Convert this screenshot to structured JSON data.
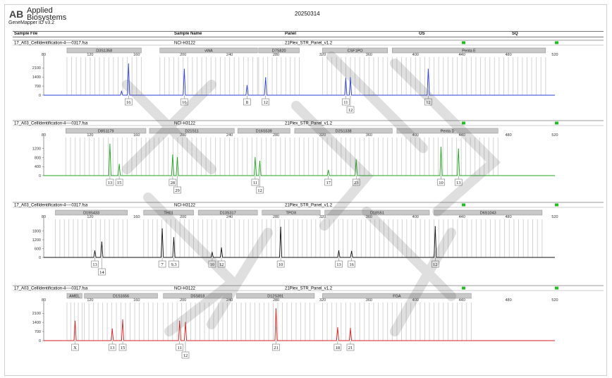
{
  "app": {
    "logo_mark": "AB",
    "logo_line1": "Applied",
    "logo_line2": "Biosystems",
    "version": "GeneMapper ID v3.2",
    "report_date": "20250314"
  },
  "header_columns": {
    "sample_file": "Sample File",
    "sample_name": "Sample Name",
    "panel": "Panel",
    "os": "OS",
    "sq": "SQ"
  },
  "watermark": "",
  "colors": {
    "blue": "#2b3fd6",
    "green": "#1ea51e",
    "black": "#111111",
    "red": "#d62020",
    "quality_ok": "#1ec21e"
  },
  "chart_data": [
    {
      "type": "electropherogram",
      "dye": "blue",
      "sample_file": "17_A03_CellIdentification-4----0317.fsa",
      "sample_name": "NCI-H3122",
      "panel": "21Plex_STR_Panel_v1.2",
      "xlim": [
        80,
        520
      ],
      "x_ticks": [
        80,
        120,
        160,
        200,
        240,
        280,
        320,
        360,
        400,
        440,
        480,
        520
      ],
      "ylim": [
        0,
        2600
      ],
      "y_ticks": [
        0,
        700,
        1400,
        2100
      ],
      "loci": [
        {
          "name": "D3S1358",
          "start": 100,
          "end": 164
        },
        {
          "name": "vWA",
          "start": 180,
          "end": 264
        },
        {
          "name": "D7S820",
          "start": 265,
          "end": 300
        },
        {
          "name": "CSF1PO",
          "start": 320,
          "end": 376
        },
        {
          "name": "Penta E",
          "start": 380,
          "end": 512
        }
      ],
      "peaks": [
        {
          "x": 147,
          "y": 300
        },
        {
          "x": 153,
          "y": 2400
        },
        {
          "x": 201,
          "y": 2000
        },
        {
          "x": 255,
          "y": 750
        },
        {
          "x": 271,
          "y": 1350
        },
        {
          "x": 340,
          "y": 1300
        },
        {
          "x": 344,
          "y": 1350
        },
        {
          "x": 411,
          "y": 2000
        }
      ],
      "allele_calls": [
        {
          "x": 153,
          "label": "16",
          "row": 0
        },
        {
          "x": 201,
          "label": "16",
          "row": 0
        },
        {
          "x": 255,
          "label": "8",
          "row": 0
        },
        {
          "x": 271,
          "label": "12",
          "row": 0
        },
        {
          "x": 340,
          "label": "11",
          "row": 0
        },
        {
          "x": 344,
          "label": "12",
          "row": 1
        },
        {
          "x": 411,
          "label": "12",
          "row": 0
        }
      ]
    },
    {
      "type": "electropherogram",
      "dye": "green",
      "sample_file": "17_A03_CellIdentification-4----0317.fsa",
      "sample_name": "NCI-H3122",
      "panel": "21Plex_STR_Panel_v1.2",
      "xlim": [
        80,
        520
      ],
      "x_ticks": [
        80,
        120,
        160,
        200,
        240,
        280,
        320,
        360,
        400,
        440,
        480,
        520
      ],
      "ylim": [
        0,
        1500
      ],
      "y_ticks": [
        0,
        400,
        800,
        1200
      ],
      "loci": [
        {
          "name": "D8S1179",
          "start": 99,
          "end": 168
        },
        {
          "name": "D21S11",
          "start": 171,
          "end": 244
        },
        {
          "name": "D16S539",
          "start": 247,
          "end": 292
        },
        {
          "name": "D2S1338",
          "start": 296,
          "end": 380
        },
        {
          "name": "Penta D",
          "start": 384,
          "end": 471
        }
      ],
      "peaks": [
        {
          "x": 137,
          "y": 1400
        },
        {
          "x": 145,
          "y": 500
        },
        {
          "x": 191,
          "y": 920
        },
        {
          "x": 195,
          "y": 800
        },
        {
          "x": 262,
          "y": 800
        },
        {
          "x": 266,
          "y": 640
        },
        {
          "x": 325,
          "y": 240
        },
        {
          "x": 349,
          "y": 700
        },
        {
          "x": 422,
          "y": 1260
        },
        {
          "x": 437,
          "y": 1180
        }
      ],
      "allele_calls": [
        {
          "x": 137,
          "label": "13",
          "row": 0
        },
        {
          "x": 145,
          "label": "15",
          "row": 0
        },
        {
          "x": 191,
          "label": "28",
          "row": 0
        },
        {
          "x": 195,
          "label": "29",
          "row": 1
        },
        {
          "x": 262,
          "label": "11",
          "row": 0
        },
        {
          "x": 266,
          "label": "12",
          "row": 1
        },
        {
          "x": 325,
          "label": "17",
          "row": 0
        },
        {
          "x": 349,
          "label": "23",
          "row": 0
        },
        {
          "x": 422,
          "label": "10",
          "row": 0
        },
        {
          "x": 437,
          "label": "13",
          "row": 0
        }
      ]
    },
    {
      "type": "electropherogram",
      "dye": "black",
      "sample_file": "17_A03_CellIdentification-4----0317.fsa",
      "sample_name": "NCI-H3122",
      "panel": "21Plex_STR_Panel_v1.2",
      "xlim": [
        80,
        520
      ],
      "x_ticks": [
        80,
        120,
        160,
        200,
        240,
        280,
        320,
        360,
        400,
        440,
        480,
        520
      ],
      "ylim": [
        0,
        2300
      ],
      "y_ticks": [
        0,
        600,
        1200,
        1800
      ],
      "loci": [
        {
          "name": "D19S433",
          "start": 90,
          "end": 152
        },
        {
          "name": "TH01",
          "start": 166,
          "end": 209
        },
        {
          "name": "D13S317",
          "start": 213,
          "end": 264
        },
        {
          "name": "TPOX",
          "start": 268,
          "end": 318
        },
        {
          "name": "D18S51",
          "start": 322,
          "end": 412
        },
        {
          "name": "D6S1043",
          "start": 416,
          "end": 509
        }
      ],
      "peaks": [
        {
          "x": 124,
          "y": 450
        },
        {
          "x": 130,
          "y": 1050
        },
        {
          "x": 182,
          "y": 1950
        },
        {
          "x": 192,
          "y": 1350
        },
        {
          "x": 225,
          "y": 350
        },
        {
          "x": 233,
          "y": 650
        },
        {
          "x": 284,
          "y": 2050
        },
        {
          "x": 334,
          "y": 450
        },
        {
          "x": 345,
          "y": 420
        },
        {
          "x": 417,
          "y": 2100
        }
      ],
      "allele_calls": [
        {
          "x": 124,
          "label": "13",
          "row": 0
        },
        {
          "x": 130,
          "label": "14",
          "row": 1
        },
        {
          "x": 182,
          "label": "7",
          "row": 0
        },
        {
          "x": 192,
          "label": "9.3",
          "row": 0
        },
        {
          "x": 225,
          "label": "10",
          "row": 0
        },
        {
          "x": 233,
          "label": "12",
          "row": 0
        },
        {
          "x": 284,
          "label": "10",
          "row": 0
        },
        {
          "x": 334,
          "label": "13",
          "row": 0
        },
        {
          "x": 345,
          "label": "16",
          "row": 0
        },
        {
          "x": 417,
          "label": "12",
          "row": 0
        }
      ]
    },
    {
      "type": "electropherogram",
      "dye": "red",
      "sample_file": "17_A03_CellIdentification-4----0317.fsa",
      "sample_name": "NCI-H3122",
      "panel": "21Plex_STR_Panel_v1.2",
      "xlim": [
        80,
        520
      ],
      "x_ticks": [
        80,
        120,
        160,
        200,
        240,
        280,
        320,
        360,
        400,
        440,
        480,
        520
      ],
      "ylim": [
        0,
        2600
      ],
      "y_ticks": [
        0,
        700,
        1400,
        2100
      ],
      "loci": [
        {
          "name": "AMEL",
          "start": 100,
          "end": 113
        },
        {
          "name": "D1S1656",
          "start": 115,
          "end": 178
        },
        {
          "name": "D5S818",
          "start": 183,
          "end": 242
        },
        {
          "name": "D12S391",
          "start": 246,
          "end": 313
        },
        {
          "name": "FGA",
          "start": 320,
          "end": 448
        }
      ],
      "peaks": [
        {
          "x": 107,
          "y": 1500
        },
        {
          "x": 139,
          "y": 900
        },
        {
          "x": 148,
          "y": 1600
        },
        {
          "x": 197,
          "y": 1500
        },
        {
          "x": 202,
          "y": 1400
        },
        {
          "x": 280,
          "y": 2450
        },
        {
          "x": 333,
          "y": 1000
        },
        {
          "x": 344,
          "y": 950
        }
      ],
      "allele_calls": [
        {
          "x": 107,
          "label": "X",
          "row": 0
        },
        {
          "x": 139,
          "label": "13",
          "row": 0
        },
        {
          "x": 148,
          "label": "15",
          "row": 0
        },
        {
          "x": 197,
          "label": "11",
          "row": 0
        },
        {
          "x": 202,
          "label": "12",
          "row": 1
        },
        {
          "x": 280,
          "label": "21",
          "row": 0
        },
        {
          "x": 333,
          "label": "18",
          "row": 0
        },
        {
          "x": 344,
          "label": "21",
          "row": 0
        }
      ]
    }
  ]
}
